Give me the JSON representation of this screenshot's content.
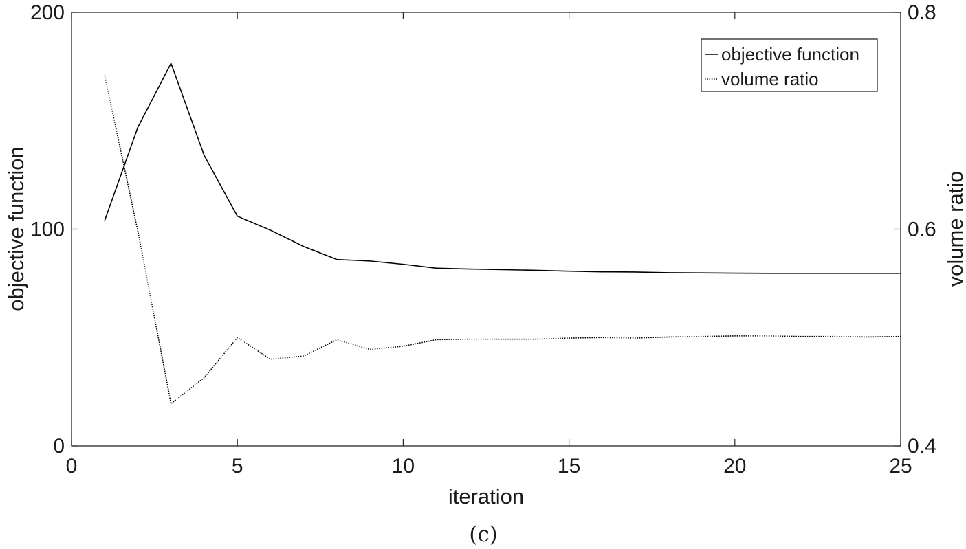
{
  "chart_data": {
    "type": "line",
    "xlabel": "iteration",
    "ylabel": "objective function",
    "y2label": "volume ratio",
    "caption": "(c)",
    "xlim": [
      0,
      25
    ],
    "ylim": [
      0,
      200
    ],
    "y2lim": [
      0.4,
      0.8
    ],
    "xticks": [
      0,
      5,
      10,
      15,
      20,
      25
    ],
    "yticks": [
      0,
      100,
      200
    ],
    "y2ticks": [
      0.4,
      0.6,
      0.8
    ],
    "grid": false,
    "legend_position": "top-right",
    "series": [
      {
        "name": "objective function",
        "axis": "left",
        "style": "solid",
        "color": "#000000",
        "x": [
          1,
          2,
          3,
          4,
          5,
          6,
          7,
          8,
          9,
          10,
          11,
          12,
          13,
          14,
          15,
          16,
          17,
          18,
          19,
          20,
          21,
          22,
          23,
          24,
          25
        ],
        "y": [
          104,
          147,
          176.5,
          134,
          106,
          99.5,
          92,
          86,
          85.3,
          83.8,
          82,
          81.6,
          81.3,
          81,
          80.6,
          80.3,
          80.2,
          79.9,
          79.8,
          79.7,
          79.6,
          79.6,
          79.6,
          79.6,
          79.6
        ]
      },
      {
        "name": "volume ratio",
        "axis": "right",
        "style": "dotted",
        "color": "#000000",
        "x": [
          1,
          2,
          3,
          4,
          5,
          6,
          7,
          8,
          9,
          10,
          11,
          12,
          13,
          14,
          15,
          16,
          17,
          18,
          19,
          20,
          21,
          22,
          23,
          24,
          25
        ],
        "y": [
          0.742,
          0.598,
          0.439,
          0.463,
          0.5,
          0.48,
          0.483,
          0.498,
          0.489,
          0.492,
          0.498,
          0.4985,
          0.4985,
          0.4985,
          0.4995,
          0.5,
          0.4995,
          0.5005,
          0.501,
          0.5015,
          0.5015,
          0.501,
          0.501,
          0.5005,
          0.501
        ]
      }
    ]
  }
}
